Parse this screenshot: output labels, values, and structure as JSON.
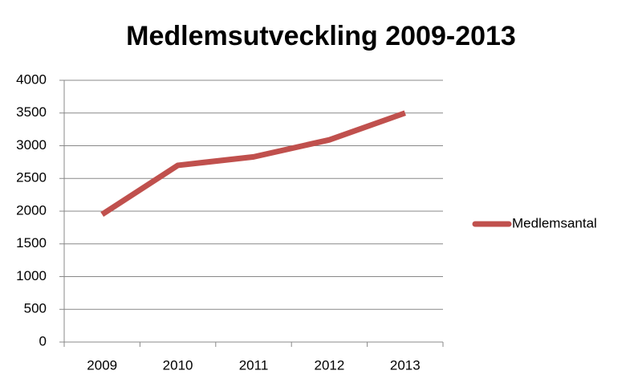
{
  "chart_data": {
    "type": "line",
    "title": "Medlemsutveckling 2009-2013",
    "categories": [
      "2009",
      "2010",
      "2011",
      "2012",
      "2013"
    ],
    "series": [
      {
        "name": "Medlemsantal",
        "color": "#c0504d",
        "values": [
          1950,
          2700,
          2830,
          3090,
          3500
        ]
      }
    ],
    "ylim": [
      0,
      4000
    ],
    "yticks": [
      0,
      500,
      1000,
      1500,
      2000,
      2500,
      3000,
      3500,
      4000
    ],
    "grid": true,
    "legend": "right"
  }
}
